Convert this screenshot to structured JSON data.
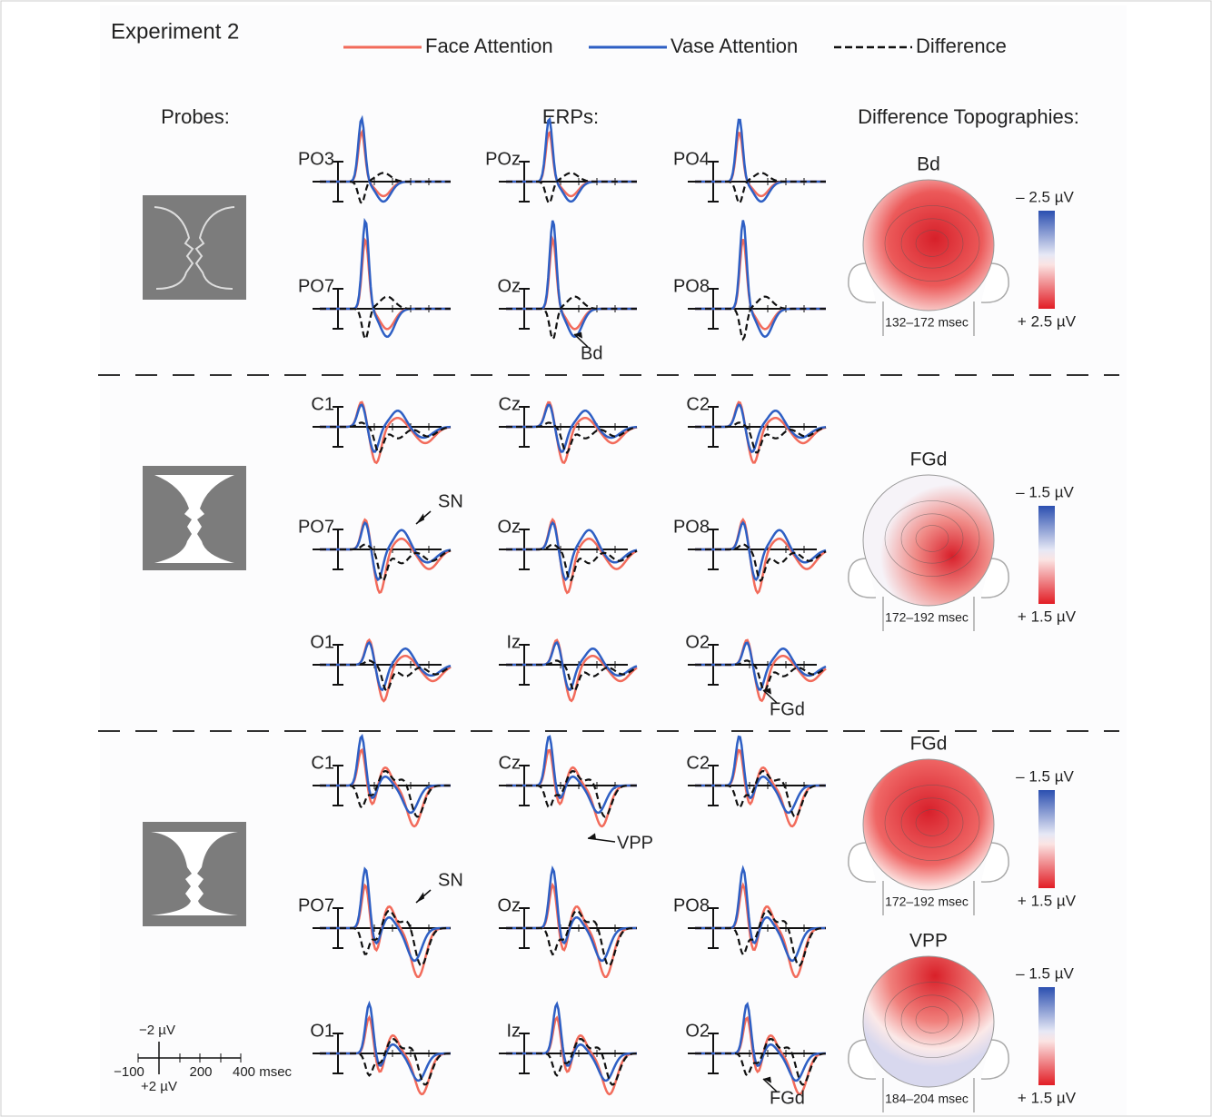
{
  "title": "Experiment 2",
  "legend": [
    {
      "label": "Face Attention",
      "color": "#f26b5b"
    },
    {
      "label": "Vase Attention",
      "color": "#2e5fc4"
    },
    {
      "label": "Difference",
      "color": "#111111"
    }
  ],
  "headers": {
    "probes": "Probes:",
    "erps": "ERPs:",
    "topographies": "Difference Topographies:"
  },
  "sections": [
    {
      "electrodes": [
        "PO3",
        "POz",
        "PO4",
        "PO7",
        "Oz",
        "PO8"
      ],
      "annotations": [
        {
          "text": "Bd",
          "electrode": 4
        }
      ],
      "topographies": [
        {
          "label": "Bd",
          "time": "132–172 msec",
          "negative": "– 2.5 µV",
          "positive": "+ 2.5 µV"
        }
      ]
    },
    {
      "electrodes": [
        "C1",
        "Cz",
        "C2",
        "PO7",
        "Oz",
        "PO8",
        "O1",
        "Iz",
        "O2"
      ],
      "annotations": [
        {
          "text": "SN",
          "electrode": 3
        },
        {
          "text": "FGd",
          "electrode": 8
        }
      ],
      "topographies": [
        {
          "label": "FGd",
          "time": "172–192 msec",
          "negative": "– 1.5 µV",
          "positive": "+ 1.5 µV"
        }
      ]
    },
    {
      "electrodes": [
        "C1",
        "Cz",
        "C2",
        "PO7",
        "Oz",
        "PO8",
        "O1",
        "Iz",
        "O2"
      ],
      "annotations": [
        {
          "text": "VPP",
          "electrode": 1
        },
        {
          "text": "SN",
          "electrode": 3
        },
        {
          "text": "FGd",
          "electrode": 8
        }
      ],
      "topographies": [
        {
          "label": "FGd",
          "time": "172–192 msec",
          "negative": "– 1.5 µV",
          "positive": "+ 1.5 µV"
        },
        {
          "label": "VPP",
          "time": "184–204 msec",
          "negative": "– 1.5 µV",
          "positive": "+ 1.5 µV"
        }
      ]
    }
  ],
  "scale": {
    "top": "−2 µV",
    "bottom": "+2 µV",
    "ticks": [
      "−100",
      "200",
      "400 msec"
    ]
  }
}
